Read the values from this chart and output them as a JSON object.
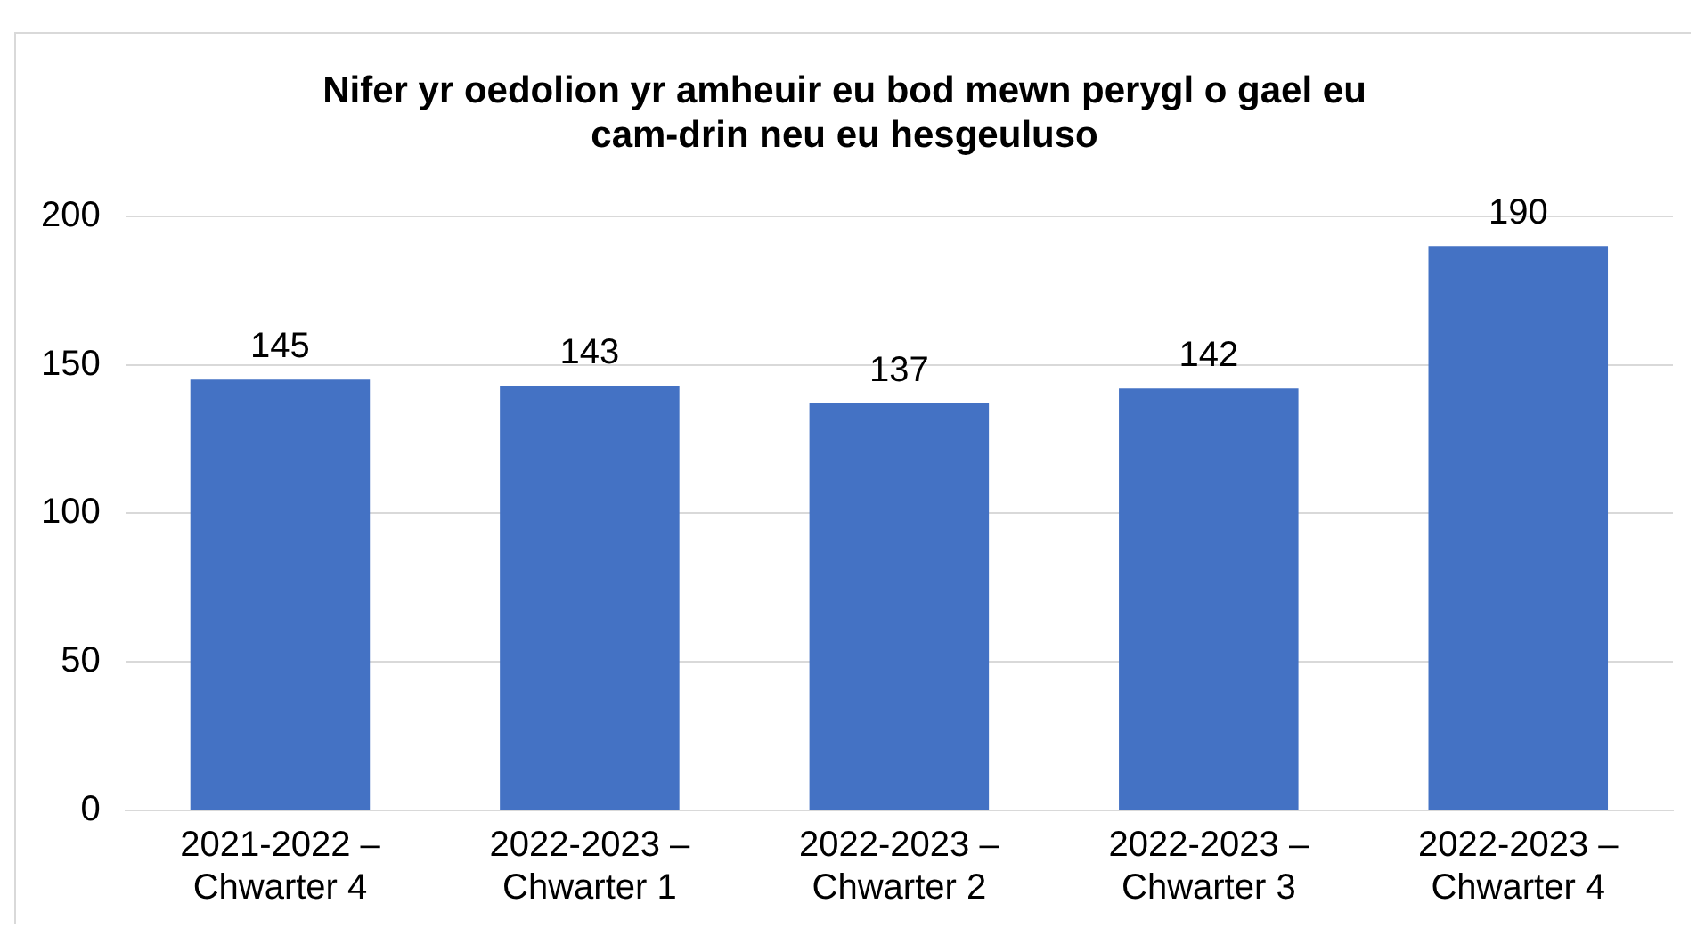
{
  "chart_data": {
    "type": "bar",
    "title": "Nifer yr oedolion yr amheuir eu bod mewn perygl o gael eu\ncam-drin neu eu hesgeuluso",
    "categories": [
      "2021-2022 –\nChwarter 4",
      "2022-2023 –\nChwarter 1",
      "2022-2023 –\nChwarter 2",
      "2022-2023 –\nChwarter 3",
      "2022-2023 –\nChwarter 4"
    ],
    "values": [
      145,
      143,
      137,
      142,
      190
    ],
    "color": "#4472c4",
    "ylim": [
      0,
      200
    ],
    "yticks": [
      0,
      50,
      100,
      150,
      200
    ],
    "grid": "y",
    "data_labels": true
  }
}
